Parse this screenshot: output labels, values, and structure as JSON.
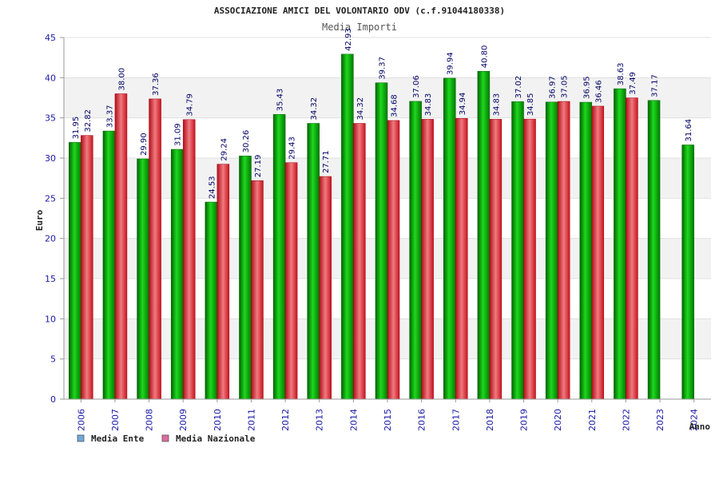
{
  "chart_data": {
    "type": "bar",
    "title": "ASSOCIAZIONE AMICI DEL VOLONTARIO ODV (c.f.91044180338)",
    "subtitle": "Media Importi",
    "xlabel": "Anno",
    "ylabel": "Euro",
    "ylim": [
      0,
      45
    ],
    "yticks": [
      0,
      5,
      10,
      15,
      20,
      25,
      30,
      35,
      40,
      45
    ],
    "grid": true,
    "legend_position": "bottom-left",
    "categories": [
      "2006",
      "2007",
      "2008",
      "2009",
      "2010",
      "2011",
      "2012",
      "2013",
      "2014",
      "2015",
      "2016",
      "2017",
      "2018",
      "2019",
      "2020",
      "2021",
      "2022",
      "2023",
      "2024"
    ],
    "series": [
      {
        "name": "Media Ente",
        "legend_color": "#6fa8dc",
        "bar_color": "#00aa00",
        "values": [
          31.95,
          33.37,
          29.9,
          31.09,
          24.53,
          30.26,
          35.43,
          34.32,
          42.93,
          39.37,
          37.06,
          39.94,
          40.8,
          37.02,
          36.97,
          36.95,
          38.63,
          37.17,
          31.64
        ],
        "labels": [
          "31.95",
          "33.37",
          "29.90",
          "31.09",
          "24.53",
          "30.26",
          "35.43",
          "34.32",
          "42.93",
          "39.37",
          "37.06",
          "39.94",
          "40.80",
          "37.02",
          "36.97",
          "36.95",
          "38.63",
          "37.17",
          "31.64"
        ]
      },
      {
        "name": "Media Nazionale",
        "legend_color": "#e06c9f",
        "bar_color": "#e8202a",
        "values": [
          32.82,
          38.0,
          37.36,
          34.79,
          29.24,
          27.19,
          29.43,
          27.71,
          34.32,
          34.68,
          34.83,
          34.94,
          34.83,
          34.85,
          37.05,
          36.46,
          37.49,
          null,
          null
        ],
        "labels": [
          "32.82",
          "38.00",
          "37.36",
          "34.79",
          "29.24",
          "27.19",
          "29.43",
          "27.71",
          "34.32",
          "34.68",
          "34.83",
          "34.94",
          "34.83",
          "34.85",
          "37.05",
          "36.46",
          "37.49",
          "",
          ""
        ]
      }
    ]
  }
}
